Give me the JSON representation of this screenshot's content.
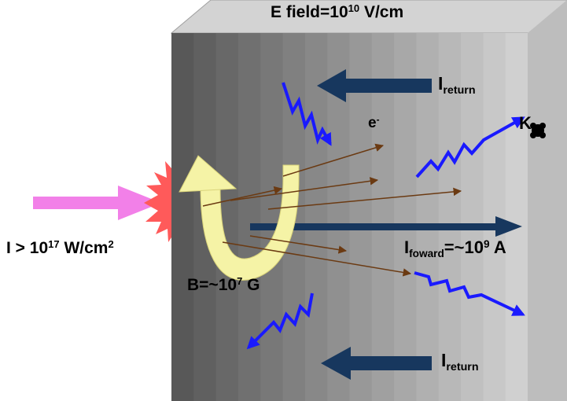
{
  "colors": {
    "slab_dark": "#555555",
    "slab_light": "#cfcfcf",
    "slab_top": "#d3d3d3",
    "slab_side": "#bdbdbd",
    "current_arrow": "#17375e",
    "electron_arrow": "#6b3a12",
    "emission_wave": "#1a1aff",
    "laser_arrow": "#f280e8",
    "laser_burst": "#ff5a5a",
    "b_field_arrow": "#f5f3a6"
  },
  "labels": {
    "e_field": {
      "prefix": "E field=10",
      "exp": "10",
      "suffix": " V/cm"
    },
    "intensity": {
      "prefix": "I > 10",
      "exp": "17",
      "mid": " W/cm",
      "exp2": "2"
    },
    "b_field": {
      "prefix": "B=~10",
      "exp": "7",
      "suffix": " G"
    },
    "i_return_top": {
      "main": "I",
      "sub": "return"
    },
    "i_return_bottom": {
      "main": "I",
      "sub": "return"
    },
    "i_forward": {
      "main": "I",
      "sub": "foward",
      "mid": "=~10",
      "exp": "9",
      "suffix": " A"
    },
    "electron": {
      "main": "e",
      "sup": "-"
    },
    "k_alpha": {
      "main": "K"
    }
  },
  "icons": {
    "k_alpha": "k-alpha-dot-icon"
  }
}
